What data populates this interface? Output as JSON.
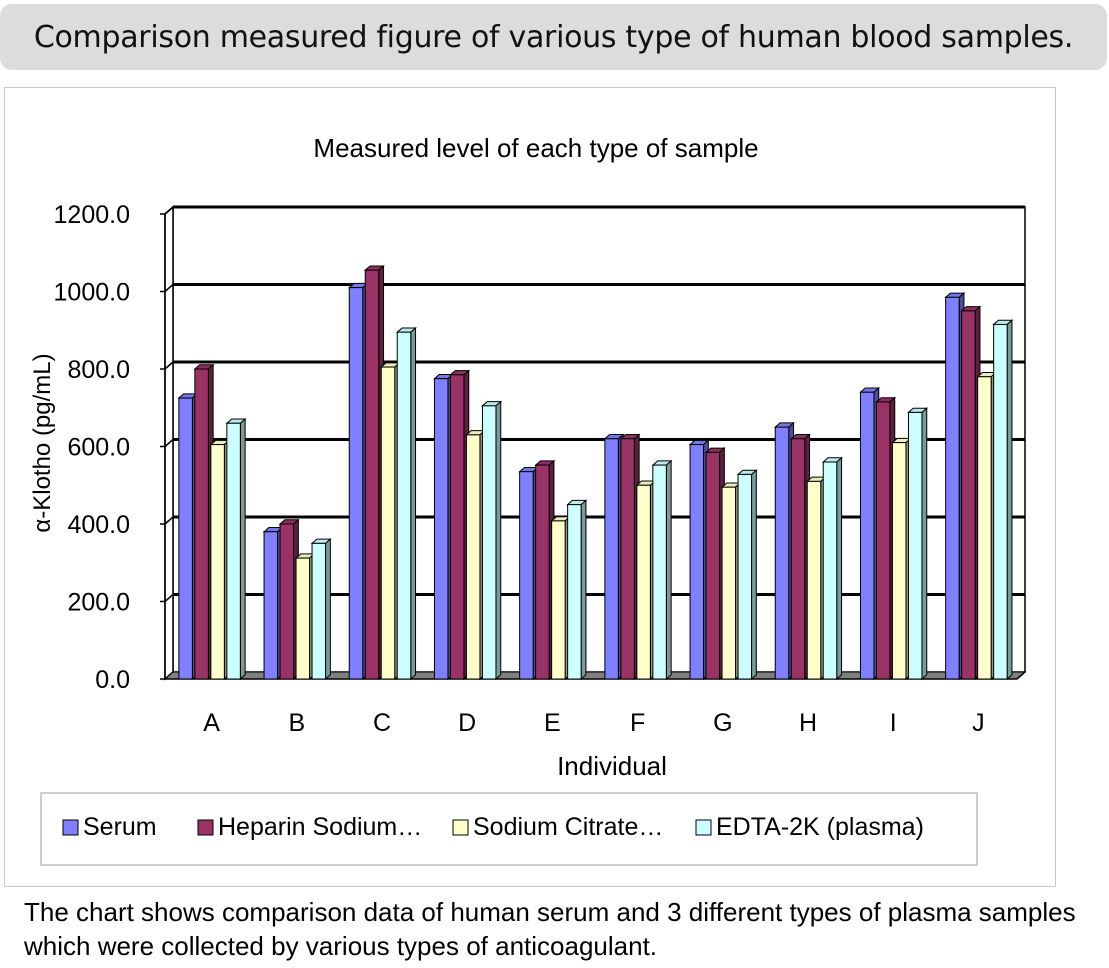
{
  "banner_title": "Comparison measured figure of various type of human blood samples.",
  "caption": "The chart shows comparison data of human serum and 3 different types of plasma samples which were collected by various types of anticoagulant.",
  "colors": {
    "serum": "#8080ff",
    "heparin": "#993366",
    "citrate": "#ffffcc",
    "edta": "#ccffff"
  },
  "chart_data": {
    "type": "bar",
    "title": "Measured level of each type of sample",
    "xlabel": "Individual",
    "ylabel": "α-Klotho (pg/mL)",
    "ylim": [
      0,
      1200
    ],
    "yticks": [
      "0.0",
      "200.0",
      "400.0",
      "600.0",
      "800.0",
      "1000.0",
      "1200.0"
    ],
    "grid": true,
    "legend_position": "bottom",
    "categories": [
      "A",
      "B",
      "C",
      "D",
      "E",
      "F",
      "G",
      "H",
      "I",
      "J"
    ],
    "series": [
      {
        "name": "Serum",
        "legend_label": "Serum",
        "color": "#8080ff",
        "values": [
          725,
          380,
          1010,
          775,
          535,
          620,
          605,
          650,
          740,
          985
        ]
      },
      {
        "name": "Heparin Sodium",
        "legend_label": "Heparin Sodium…",
        "color": "#993366",
        "values": [
          800,
          400,
          1055,
          785,
          552,
          620,
          585,
          620,
          715,
          950
        ]
      },
      {
        "name": "Sodium Citrate",
        "legend_label": "Sodium Citrate…",
        "color": "#ffffcc",
        "values": [
          605,
          312,
          805,
          630,
          408,
          500,
          495,
          510,
          610,
          780
        ]
      },
      {
        "name": "EDTA-2K (plasma)",
        "legend_label": "EDTA-2K (plasma)",
        "color": "#ccffff",
        "values": [
          660,
          350,
          895,
          705,
          450,
          552,
          528,
          560,
          688,
          915
        ]
      }
    ]
  }
}
